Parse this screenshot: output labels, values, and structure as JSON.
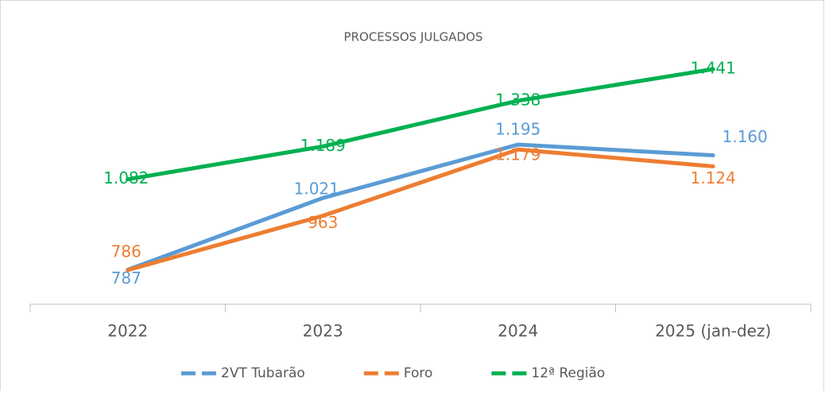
{
  "chart_data": {
    "type": "line",
    "title": "PROCESSOS JULGADOS",
    "categories": [
      "2022",
      "2023",
      "2024",
      "2025 (jan-dez)"
    ],
    "series": [
      {
        "name": "2VT Tubarão",
        "color": "#5b9bd5",
        "values": [
          787,
          1021,
          1195,
          1160
        ],
        "value_labels": [
          "787",
          "1.021",
          "1.195",
          "1.160"
        ]
      },
      {
        "name": "Foro",
        "color": "#ed7d31",
        "values": [
          786,
          963,
          1179,
          1124
        ],
        "value_labels": [
          "786",
          "963",
          "1.179",
          "1.124"
        ]
      },
      {
        "name": "12ª Região",
        "color": "#00b050",
        "values": [
          1082,
          1189,
          1338,
          1441
        ],
        "value_labels": [
          "1.082",
          "1.189",
          "1.338",
          "1.441"
        ]
      }
    ]
  }
}
